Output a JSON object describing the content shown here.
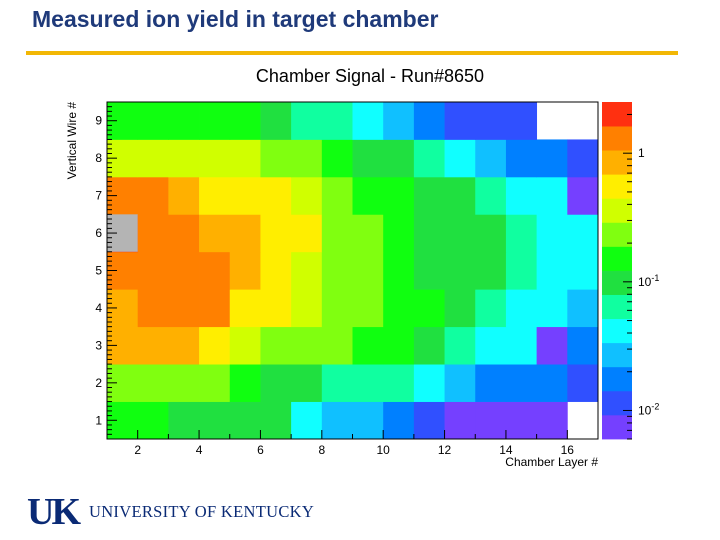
{
  "slide": {
    "title": "Measured ion yield in target chamber"
  },
  "logo": {
    "mark": "UK",
    "text": "UNIVERSITY OF KENTUCKY"
  },
  "chart_data": {
    "type": "heatmap",
    "title": "Chamber Signal - Run#8650",
    "xlabel": "Chamber Layer #",
    "ylabel": "Vertical Wire #",
    "xlim": [
      1,
      17
    ],
    "ylim": [
      0.5,
      9.5
    ],
    "x_ticks": [
      2,
      4,
      6,
      8,
      10,
      12,
      14,
      16
    ],
    "y_ticks": [
      1,
      2,
      3,
      4,
      5,
      6,
      7,
      8,
      9
    ],
    "color_scale": "log",
    "color_range": [
      0.006,
      2.5
    ],
    "colorbar_ticks": [
      {
        "value": 1,
        "label": "1"
      },
      {
        "value": 0.1,
        "label": "10^-1"
      },
      {
        "value": 0.01,
        "label": "10^-2"
      }
    ],
    "palette": [
      "#7540ff",
      "#3050ff",
      "#0080ff",
      "#10c0ff",
      "#10ffff",
      "#10ffa0",
      "#20e040",
      "#10ff10",
      "#80ff10",
      "#d0ff00",
      "#ffee00",
      "#ffb000",
      "#ff8000",
      "#ff3010"
    ],
    "empty_cells": [
      [
        16,
        1
      ],
      [
        15,
        9
      ],
      [
        16,
        9
      ]
    ],
    "cells": [
      {
        "wire": 1,
        "values": [
          0.16,
          0.14,
          0.1,
          0.08,
          0.08,
          0.08,
          0.05,
          0.025,
          0.025,
          0.02,
          0.012,
          0.009,
          0.009,
          0.008,
          0.008,
          null
        ]
      },
      {
        "wire": 2,
        "values": [
          0.28,
          0.28,
          0.28,
          0.28,
          0.16,
          0.1,
          0.12,
          0.07,
          0.055,
          0.055,
          0.035,
          0.025,
          0.017,
          0.015,
          0.015,
          0.01
        ]
      },
      {
        "wire": 3,
        "values": [
          0.75,
          0.75,
          0.75,
          0.45,
          0.38,
          0.24,
          0.24,
          0.24,
          0.18,
          0.13,
          0.1,
          0.07,
          0.04,
          0.04,
          0.008,
          0.015
        ]
      },
      {
        "wire": 4,
        "values": [
          0.85,
          1.3,
          1.3,
          1.3,
          0.45,
          0.45,
          0.38,
          0.28,
          0.28,
          0.18,
          0.13,
          0.1,
          0.06,
          0.05,
          0.05,
          0.025
        ]
      },
      {
        "wire": 5,
        "values": [
          1.6,
          1.6,
          1.3,
          1.1,
          0.85,
          0.55,
          0.38,
          0.28,
          0.22,
          0.15,
          0.12,
          0.1,
          0.08,
          0.06,
          0.05,
          0.04
        ]
      },
      {
        "wire": 6,
        "values": [
          2.5,
          1.6,
          1.3,
          0.85,
          0.85,
          0.55,
          0.45,
          0.28,
          0.22,
          0.15,
          0.12,
          0.1,
          0.08,
          0.06,
          0.05,
          0.04
        ]
      },
      {
        "wire": 7,
        "values": [
          1.6,
          1.3,
          0.85,
          0.65,
          0.65,
          0.45,
          0.38,
          0.24,
          0.16,
          0.14,
          0.1,
          0.08,
          0.06,
          0.05,
          0.035,
          0.007
        ]
      },
      {
        "wire": 8,
        "values": [
          0.35,
          0.35,
          0.35,
          0.3,
          0.3,
          0.24,
          0.2,
          0.15,
          0.12,
          0.1,
          0.06,
          0.04,
          0.025,
          0.018,
          0.018,
          0.01
        ]
      },
      {
        "wire": 9,
        "values": [
          0.18,
          0.18,
          0.14,
          0.14,
          0.14,
          0.1,
          0.07,
          0.055,
          0.035,
          0.025,
          0.016,
          0.01,
          0.01,
          0.01,
          null,
          null
        ]
      }
    ]
  }
}
